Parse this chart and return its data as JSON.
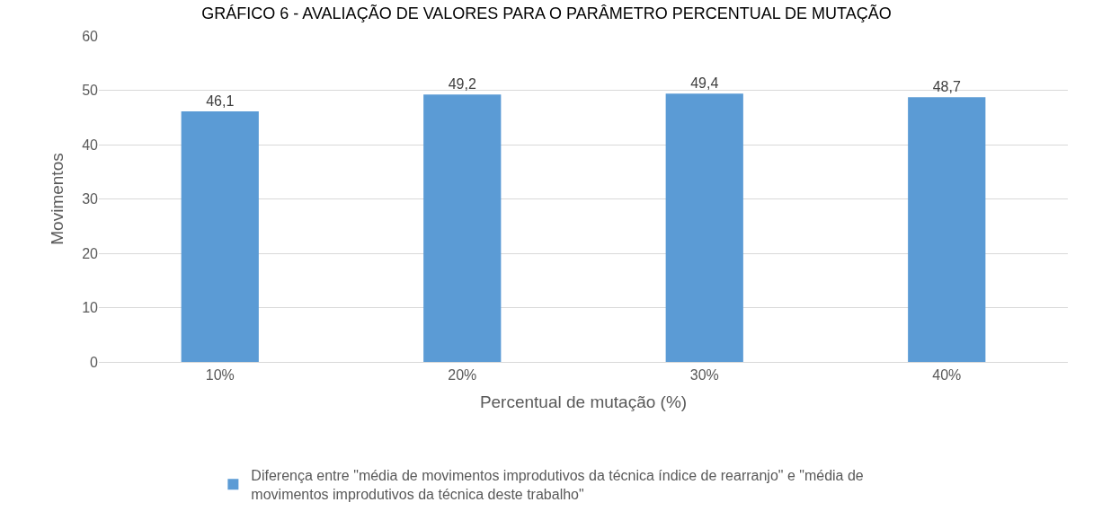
{
  "chart_data": {
    "type": "bar",
    "title": "GRÁFICO 6 - AVALIAÇÃO DE VALORES PARA O PARÂMETRO PERCENTUAL DE MUTAÇÃO",
    "xlabel": "Percentual de mutação (%)",
    "ylabel": "Movimentos",
    "categories": [
      "10%",
      "20%",
      "30%",
      "40%"
    ],
    "series": [
      {
        "name": "Diferença entre \"média de movimentos improdutivos da técnica índice de rearranjo\" e \"média de movimentos improdutivos da técnica deste trabalho\"",
        "color": "#5b9bd5",
        "values": [
          46.1,
          49.2,
          49.4,
          48.7
        ],
        "value_labels": [
          "46,1",
          "49,2",
          "49,4",
          "48,7"
        ]
      }
    ],
    "ylim": [
      0,
      60
    ],
    "yticks": [
      0,
      10,
      20,
      30,
      40,
      50,
      60
    ],
    "grid": "y",
    "legend": "bottom"
  }
}
